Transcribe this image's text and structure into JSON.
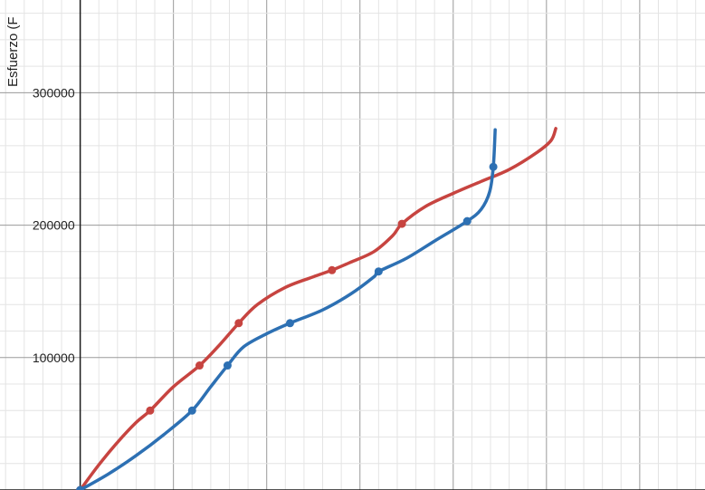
{
  "chart_data": {
    "type": "scatter",
    "title": "",
    "ylabel": "Esfuerzo (F",
    "xlabel": "",
    "grid": true,
    "legend": "none",
    "xlim": [
      -8.6,
      67
    ],
    "ylim": [
      0,
      370000
    ],
    "y_ticks": [
      100000,
      200000,
      300000
    ],
    "y_tick_labels": [
      "100000",
      "200000",
      "300000"
    ],
    "series": [
      {
        "color": "#c74440",
        "points": [
          {
            "x": 0,
            "y": 0
          },
          {
            "x": 7.5,
            "y": 60000
          },
          {
            "x": 12.8,
            "y": 94000
          },
          {
            "x": 17,
            "y": 126000
          },
          {
            "x": 27,
            "y": 166000
          },
          {
            "x": 34.5,
            "y": 201000
          }
        ],
        "curve": [
          {
            "x": 0,
            "y": 0
          },
          {
            "x": 2,
            "y": 19000
          },
          {
            "x": 4,
            "y": 36000
          },
          {
            "x": 6,
            "y": 51000
          },
          {
            "x": 7.5,
            "y": 60000
          },
          {
            "x": 10,
            "y": 78000
          },
          {
            "x": 12.8,
            "y": 94000
          },
          {
            "x": 15,
            "y": 110000
          },
          {
            "x": 17,
            "y": 126000
          },
          {
            "x": 19,
            "y": 140000
          },
          {
            "x": 22,
            "y": 153000
          },
          {
            "x": 25,
            "y": 161000
          },
          {
            "x": 27,
            "y": 166000
          },
          {
            "x": 29,
            "y": 172000
          },
          {
            "x": 31.5,
            "y": 180000
          },
          {
            "x": 33.5,
            "y": 192000
          },
          {
            "x": 34.5,
            "y": 201000
          },
          {
            "x": 37,
            "y": 214000
          },
          {
            "x": 40,
            "y": 224000
          },
          {
            "x": 43,
            "y": 233000
          },
          {
            "x": 46,
            "y": 242000
          },
          {
            "x": 49,
            "y": 255000
          },
          {
            "x": 50.5,
            "y": 264000
          },
          {
            "x": 51,
            "y": 273000
          }
        ]
      },
      {
        "color": "#2d70b3",
        "points": [
          {
            "x": 0,
            "y": 0
          },
          {
            "x": 12,
            "y": 60000
          },
          {
            "x": 15.8,
            "y": 94000
          },
          {
            "x": 22.5,
            "y": 126000
          },
          {
            "x": 32,
            "y": 165000
          },
          {
            "x": 41.5,
            "y": 203000
          },
          {
            "x": 44.3,
            "y": 244000
          }
        ],
        "curve": [
          {
            "x": 0,
            "y": 0
          },
          {
            "x": 3,
            "y": 12000
          },
          {
            "x": 6,
            "y": 26000
          },
          {
            "x": 9,
            "y": 42000
          },
          {
            "x": 12,
            "y": 60000
          },
          {
            "x": 14,
            "y": 78000
          },
          {
            "x": 15.8,
            "y": 94000
          },
          {
            "x": 17.5,
            "y": 108000
          },
          {
            "x": 20,
            "y": 118000
          },
          {
            "x": 22.5,
            "y": 126000
          },
          {
            "x": 26,
            "y": 136000
          },
          {
            "x": 29,
            "y": 148000
          },
          {
            "x": 31.5,
            "y": 161000
          },
          {
            "x": 32,
            "y": 165000
          },
          {
            "x": 35,
            "y": 175000
          },
          {
            "x": 38,
            "y": 188000
          },
          {
            "x": 41.5,
            "y": 203000
          },
          {
            "x": 43,
            "y": 212000
          },
          {
            "x": 43.9,
            "y": 225000
          },
          {
            "x": 44.3,
            "y": 244000
          },
          {
            "x": 44.5,
            "y": 272000
          }
        ]
      }
    ]
  }
}
